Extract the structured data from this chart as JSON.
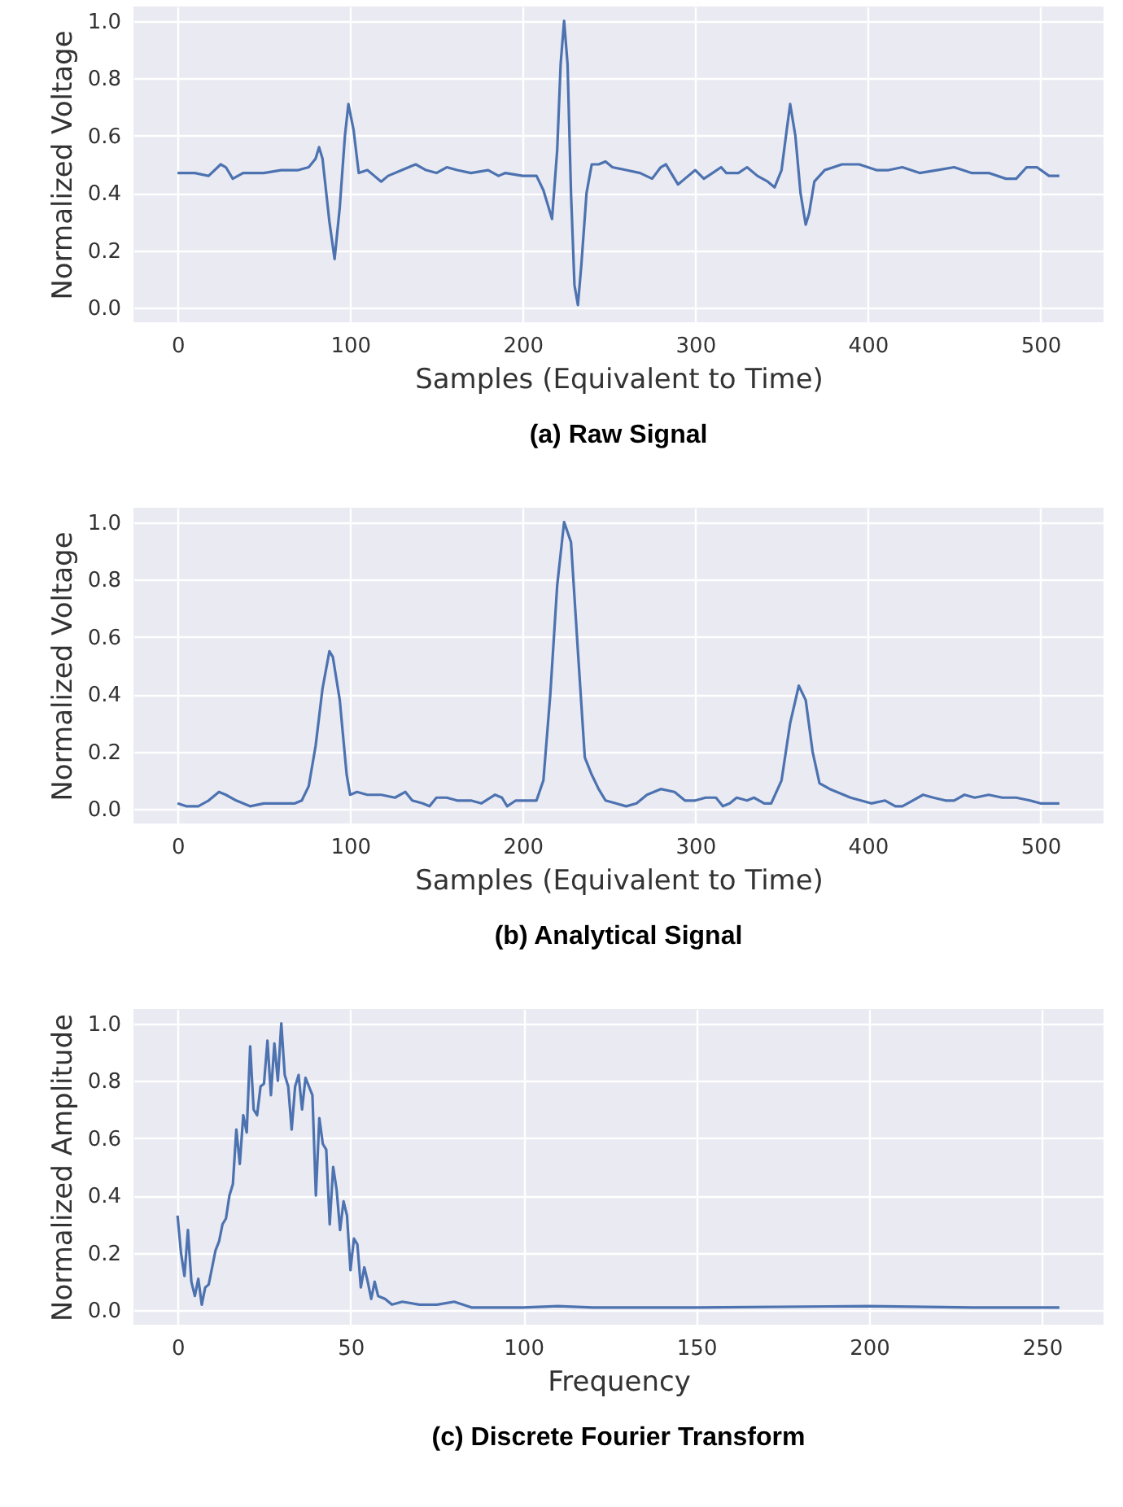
{
  "chart_data": [
    {
      "type": "line",
      "title": "(a) Raw Signal",
      "xlabel": "Samples (Equivalent to Time)",
      "ylabel": "Normalized Voltage",
      "grid": true,
      "xlim": [
        -25.55,
        536.55
      ],
      "xticks": [
        0,
        100,
        200,
        300,
        400,
        500
      ],
      "ylim": [
        -0.05,
        1.05
      ],
      "yticks": [
        {
          "value": 0,
          "label": "0.0"
        },
        {
          "value": 0.2,
          "label": "0.2"
        },
        {
          "value": 0.4,
          "label": "0.4"
        },
        {
          "value": 0.6,
          "label": "0.6"
        },
        {
          "value": 0.8,
          "label": "0.8"
        },
        {
          "value": 1,
          "label": "1.0"
        }
      ],
      "series": [
        {
          "color": "#4c72b0",
          "x": [
            0,
            10,
            18,
            25,
            28,
            32,
            38,
            50,
            60,
            70,
            76,
            80,
            82,
            84,
            88,
            91,
            94,
            97,
            99,
            102,
            105,
            110,
            114,
            118,
            122,
            130,
            138,
            144,
            150,
            156,
            162,
            170,
            180,
            186,
            190,
            200,
            208,
            212,
            215,
            217,
            220,
            222,
            224,
            226,
            228,
            230,
            232,
            234,
            237,
            240,
            244,
            248,
            252,
            260,
            268,
            275,
            280,
            283,
            286,
            290,
            294,
            300,
            305,
            310,
            315,
            318,
            325,
            330,
            336,
            342,
            346,
            350,
            353,
            355,
            358,
            361,
            364,
            366,
            369,
            375,
            385,
            395,
            405,
            412,
            420,
            430,
            440,
            450,
            460,
            470,
            480,
            486,
            492,
            498,
            505,
            511
          ],
          "values": [
            0.47,
            0.47,
            0.46,
            0.5,
            0.49,
            0.45,
            0.47,
            0.47,
            0.48,
            0.48,
            0.49,
            0.52,
            0.56,
            0.52,
            0.3,
            0.17,
            0.35,
            0.6,
            0.71,
            0.62,
            0.47,
            0.48,
            0.46,
            0.44,
            0.46,
            0.48,
            0.5,
            0.48,
            0.47,
            0.49,
            0.48,
            0.47,
            0.48,
            0.46,
            0.47,
            0.46,
            0.46,
            0.41,
            0.35,
            0.31,
            0.55,
            0.85,
            1.0,
            0.85,
            0.4,
            0.08,
            0.01,
            0.15,
            0.4,
            0.5,
            0.5,
            0.51,
            0.49,
            0.48,
            0.47,
            0.45,
            0.49,
            0.5,
            0.47,
            0.43,
            0.45,
            0.48,
            0.45,
            0.47,
            0.49,
            0.47,
            0.47,
            0.49,
            0.46,
            0.44,
            0.42,
            0.48,
            0.62,
            0.71,
            0.6,
            0.4,
            0.29,
            0.33,
            0.44,
            0.48,
            0.5,
            0.5,
            0.48,
            0.48,
            0.49,
            0.47,
            0.48,
            0.49,
            0.47,
            0.47,
            0.45,
            0.45,
            0.49,
            0.49,
            0.46,
            0.46
          ]
        }
      ]
    },
    {
      "type": "line",
      "title": "(b) Analytical Signal",
      "xlabel": "Samples (Equivalent to Time)",
      "ylabel": "Normalized Voltage",
      "grid": true,
      "xlim": [
        -25.55,
        536.55
      ],
      "xticks": [
        0,
        100,
        200,
        300,
        400,
        500
      ],
      "ylim": [
        -0.05,
        1.05
      ],
      "yticks": [
        {
          "value": 0,
          "label": "0.0"
        },
        {
          "value": 0.2,
          "label": "0.2"
        },
        {
          "value": 0.4,
          "label": "0.4"
        },
        {
          "value": 0.6,
          "label": "0.6"
        },
        {
          "value": 0.8,
          "label": "0.8"
        },
        {
          "value": 1,
          "label": "1.0"
        }
      ],
      "series": [
        {
          "color": "#4c72b0",
          "x": [
            0,
            5,
            12,
            18,
            24,
            28,
            34,
            42,
            50,
            60,
            68,
            72,
            76,
            80,
            84,
            88,
            90,
            94,
            98,
            100,
            104,
            110,
            118,
            126,
            132,
            136,
            142,
            146,
            150,
            156,
            162,
            170,
            176,
            184,
            188,
            191,
            196,
            204,
            208,
            212,
            216,
            220,
            224,
            228,
            232,
            236,
            240,
            244,
            248,
            254,
            260,
            266,
            272,
            280,
            288,
            294,
            300,
            306,
            312,
            316,
            320,
            324,
            330,
            334,
            340,
            344,
            350,
            355,
            360,
            364,
            368,
            372,
            378,
            382,
            390,
            396,
            402,
            410,
            416,
            420,
            426,
            432,
            438,
            445,
            450,
            456,
            462,
            470,
            478,
            486,
            494,
            500,
            511
          ],
          "values": [
            0.02,
            0.01,
            0.01,
            0.03,
            0.06,
            0.05,
            0.03,
            0.01,
            0.02,
            0.02,
            0.02,
            0.03,
            0.08,
            0.22,
            0.42,
            0.55,
            0.53,
            0.38,
            0.12,
            0.05,
            0.06,
            0.05,
            0.05,
            0.04,
            0.06,
            0.03,
            0.02,
            0.01,
            0.04,
            0.04,
            0.03,
            0.03,
            0.02,
            0.05,
            0.04,
            0.01,
            0.03,
            0.03,
            0.03,
            0.1,
            0.4,
            0.78,
            1.0,
            0.93,
            0.55,
            0.18,
            0.12,
            0.07,
            0.03,
            0.02,
            0.01,
            0.02,
            0.05,
            0.07,
            0.06,
            0.03,
            0.03,
            0.04,
            0.04,
            0.01,
            0.02,
            0.04,
            0.03,
            0.04,
            0.02,
            0.02,
            0.1,
            0.3,
            0.43,
            0.38,
            0.2,
            0.09,
            0.07,
            0.06,
            0.04,
            0.03,
            0.02,
            0.03,
            0.01,
            0.01,
            0.03,
            0.05,
            0.04,
            0.03,
            0.03,
            0.05,
            0.04,
            0.05,
            0.04,
            0.04,
            0.03,
            0.02,
            0.02
          ]
        }
      ]
    },
    {
      "type": "line",
      "title": "(c) Discrete Fourier Transform",
      "xlabel": "Frequency",
      "ylabel": "Normalized Amplitude",
      "grid": true,
      "xlim": [
        -12.75,
        267.75
      ],
      "xticks": [
        0,
        50,
        100,
        150,
        200,
        250
      ],
      "ylim": [
        -0.05,
        1.05
      ],
      "yticks": [
        {
          "value": 0,
          "label": "0.0"
        },
        {
          "value": 0.2,
          "label": "0.2"
        },
        {
          "value": 0.4,
          "label": "0.4"
        },
        {
          "value": 0.6,
          "label": "0.6"
        },
        {
          "value": 0.8,
          "label": "0.8"
        },
        {
          "value": 1,
          "label": "1.0"
        }
      ],
      "series": [
        {
          "color": "#4c72b0",
          "x": [
            0,
            1,
            2,
            3,
            4,
            5,
            6,
            7,
            8,
            9,
            10,
            11,
            12,
            13,
            14,
            15,
            16,
            17,
            18,
            19,
            20,
            21,
            22,
            23,
            24,
            25,
            26,
            27,
            28,
            29,
            30,
            31,
            32,
            33,
            34,
            35,
            36,
            37,
            38,
            39,
            40,
            41,
            42,
            43,
            44,
            45,
            46,
            47,
            48,
            49,
            50,
            51,
            52,
            53,
            54,
            55,
            56,
            57,
            58,
            60,
            62,
            65,
            70,
            75,
            80,
            85,
            90,
            100,
            110,
            120,
            130,
            150,
            200,
            230,
            255
          ],
          "values": [
            0.33,
            0.2,
            0.12,
            0.28,
            0.1,
            0.05,
            0.11,
            0.02,
            0.08,
            0.09,
            0.15,
            0.21,
            0.24,
            0.3,
            0.32,
            0.4,
            0.44,
            0.63,
            0.51,
            0.68,
            0.62,
            0.92,
            0.7,
            0.68,
            0.78,
            0.79,
            0.94,
            0.75,
            0.93,
            0.8,
            1.0,
            0.82,
            0.78,
            0.63,
            0.78,
            0.82,
            0.7,
            0.81,
            0.78,
            0.75,
            0.4,
            0.67,
            0.58,
            0.56,
            0.3,
            0.5,
            0.42,
            0.28,
            0.38,
            0.33,
            0.14,
            0.25,
            0.23,
            0.08,
            0.15,
            0.1,
            0.04,
            0.1,
            0.05,
            0.04,
            0.02,
            0.03,
            0.02,
            0.02,
            0.03,
            0.01,
            0.01,
            0.01,
            0.015,
            0.01,
            0.01,
            0.01,
            0.015,
            0.01,
            0.01
          ]
        }
      ]
    }
  ]
}
